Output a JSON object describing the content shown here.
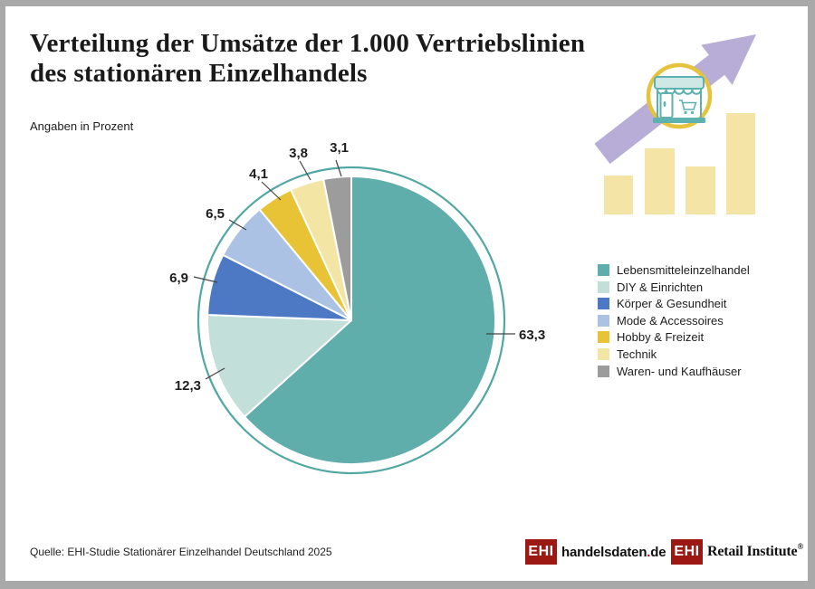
{
  "header": {
    "title_line1": "Verteilung der Umsätze der 1.000 Vertriebslinien",
    "title_line2": "des stationären Einzelhandels",
    "subtitle": "Angaben in Prozent"
  },
  "chart_data": {
    "type": "pie",
    "title": "Verteilung der Umsätze der 1.000 Vertriebslinien des stationären Einzelhandels",
    "subtitle": "Angaben in Prozent",
    "unit": "Prozent",
    "categories": [
      "Lebensmitteleinzelhandel",
      "DIY & Einrichten",
      "Körper & Gesundheit",
      "Mode & Accessoires",
      "Hobby & Freizeit",
      "Technik",
      "Waren- und Kaufhäuser"
    ],
    "values": [
      63.3,
      12.3,
      6.9,
      6.5,
      4.1,
      3.8,
      3.1
    ],
    "labels_display": [
      "63,3",
      "12,3",
      "6,9",
      "6,5",
      "4,1",
      "3,8",
      "3,1"
    ],
    "colors": [
      "#60aeab",
      "#c3dfda",
      "#4d79c4",
      "#abc2e4",
      "#e7c335",
      "#f3e5a4",
      "#9c9c9c"
    ],
    "start_angle_deg": 0,
    "direction": "clockwise",
    "legend_position": "right",
    "ring_color": "#52a7a3"
  },
  "decoration": {
    "arrow_color": "#b7add6",
    "bar_color": "#f4e5a6",
    "badge_ring_color": "#e6c33d",
    "store_color": "#5db1b0"
  },
  "footer": {
    "source": "Quelle: EHI-Studie Stationärer Einzelhandel Deutschland 2025",
    "brand_red": "#9b1813",
    "logo_handelsdaten": {
      "box": "EHI",
      "name": "handelsdaten",
      "dot": ".",
      "tld": "de"
    },
    "logo_retail": {
      "box": "EHI",
      "name": "Retail Institute",
      "registered": "®"
    }
  }
}
